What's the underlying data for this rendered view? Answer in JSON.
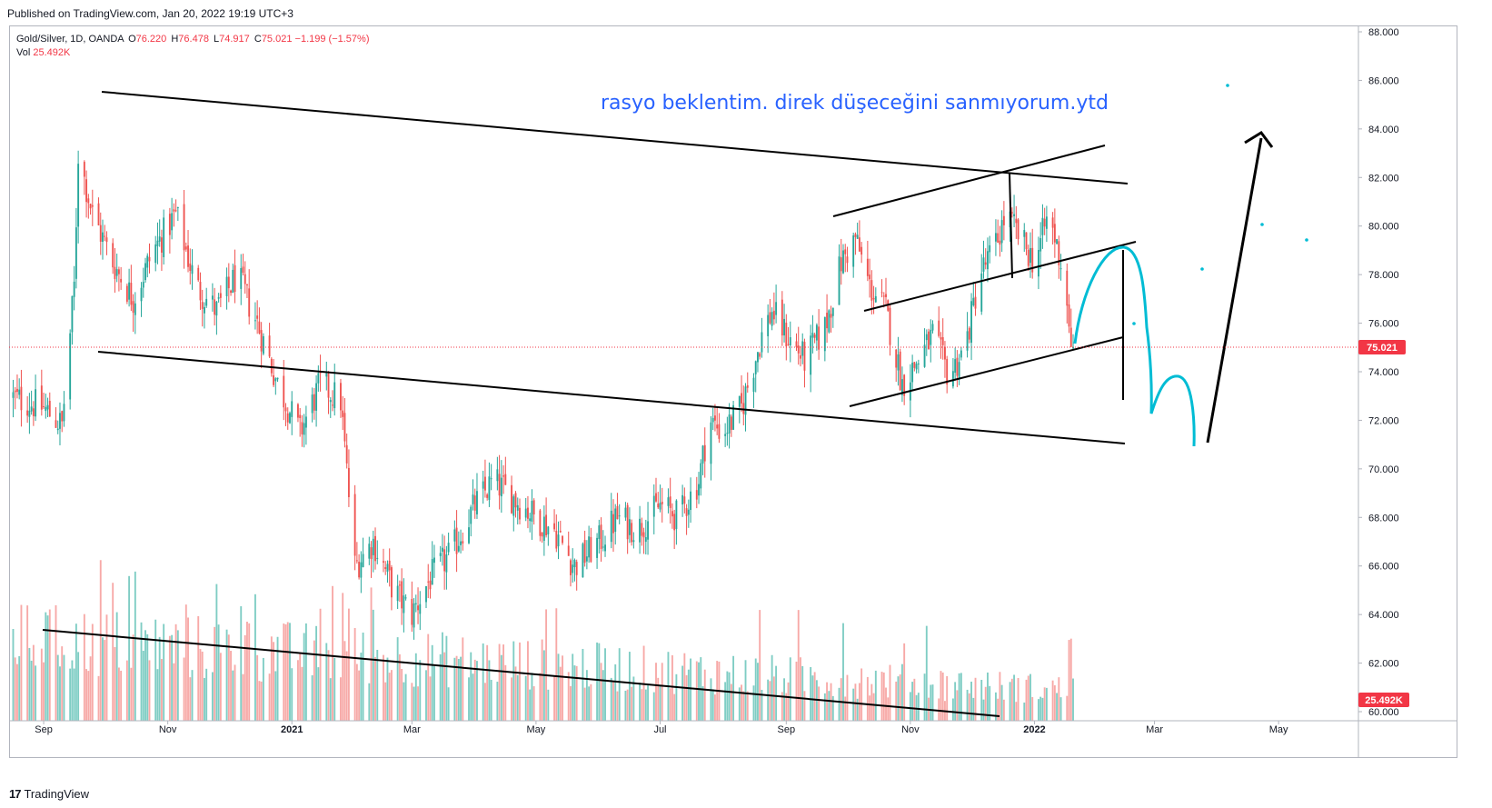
{
  "header": {
    "published": "Published on TradingView.com, Jan 20, 2022 19:19 UTC+3"
  },
  "legend": {
    "symbol": "Gold/Silver, 1D, OANDA",
    "o_label": "O",
    "o": "76.220",
    "h_label": "H",
    "h": "76.478",
    "l_label": "L",
    "l": "74.917",
    "c_label": "C",
    "c": "75.021",
    "change": "−1.199 (−1.57%)",
    "vol_label": "Vol",
    "vol": "25.492K"
  },
  "annotation_text": "rasyo beklentim. direk düşeceğini sanmıyorum.ytd",
  "price_badge": "75.021",
  "volume_badge": "25.492K",
  "footer": {
    "brand": "TradingView"
  },
  "colors": {
    "up": "#26a69a",
    "down": "#ef5350",
    "up_vol": "#7fcdc4",
    "down_vol": "#f7a9a7",
    "annotation": "#2962ff",
    "drawing_cyan": "#00bcd4",
    "badge": "#f23645"
  },
  "chart_data": {
    "type": "candlestick",
    "symbol": "Gold/Silver",
    "interval": "1D",
    "y_axis": {
      "ylim": [
        60,
        88
      ],
      "ticks": [
        "88.000",
        "86.000",
        "84.000",
        "82.000",
        "80.000",
        "78.000",
        "76.000",
        "74.000",
        "72.000",
        "70.000",
        "68.000",
        "66.000",
        "64.000",
        "62.000",
        "60.000"
      ]
    },
    "x_axis": {
      "tick_labels": [
        "Sep",
        "Nov",
        "2021",
        "Mar",
        "May",
        "Jul",
        "Sep",
        "Nov",
        "2022",
        "Mar",
        "May"
      ]
    },
    "last_close": 75.021,
    "approx_close_path": [
      [
        "2020-08-15",
        73.0
      ],
      [
        "2020-09-01",
        72.5
      ],
      [
        "2020-09-10",
        71.8
      ],
      [
        "2020-09-16",
        77.5
      ],
      [
        "2020-09-18",
        83.0
      ],
      [
        "2020-09-25",
        80.5
      ],
      [
        "2020-10-05",
        78.5
      ],
      [
        "2020-10-15",
        77.0
      ],
      [
        "2020-10-25",
        79.0
      ],
      [
        "2020-11-05",
        80.5
      ],
      [
        "2020-11-15",
        77.5
      ],
      [
        "2020-11-25",
        76.5
      ],
      [
        "2020-12-05",
        78.0
      ],
      [
        "2020-12-15",
        76.0
      ],
      [
        "2020-12-25",
        73.5
      ],
      [
        "2021-01-05",
        71.5
      ],
      [
        "2021-01-15",
        73.5
      ],
      [
        "2021-01-25",
        72.8
      ],
      [
        "2021-02-01",
        66.0
      ],
      [
        "2021-02-10",
        67.0
      ],
      [
        "2021-02-20",
        65.0
      ],
      [
        "2021-03-01",
        64.0
      ],
      [
        "2021-03-10",
        65.5
      ],
      [
        "2021-03-20",
        66.5
      ],
      [
        "2021-04-01",
        68.5
      ],
      [
        "2021-04-10",
        69.5
      ],
      [
        "2021-04-20",
        68.8
      ],
      [
        "2021-05-01",
        68.0
      ],
      [
        "2021-05-10",
        67.5
      ],
      [
        "2021-05-20",
        66.0
      ],
      [
        "2021-06-01",
        67.0
      ],
      [
        "2021-06-10",
        68.0
      ],
      [
        "2021-06-20",
        67.5
      ],
      [
        "2021-07-01",
        68.5
      ],
      [
        "2021-07-10",
        68.0
      ],
      [
        "2021-07-20",
        69.5
      ],
      [
        "2021-07-25",
        72.0
      ],
      [
        "2021-08-01",
        71.5
      ],
      [
        "2021-08-10",
        72.5
      ],
      [
        "2021-08-20",
        75.5
      ],
      [
        "2021-08-25",
        76.5
      ],
      [
        "2021-09-01",
        75.5
      ],
      [
        "2021-09-10",
        74.5
      ],
      [
        "2021-09-20",
        75.8
      ],
      [
        "2021-09-28",
        78.5
      ],
      [
        "2021-10-05",
        79.5
      ],
      [
        "2021-10-12",
        77.5
      ],
      [
        "2021-10-20",
        76.5
      ],
      [
        "2021-10-28",
        73.5
      ],
      [
        "2021-11-05",
        74.5
      ],
      [
        "2021-11-12",
        75.5
      ],
      [
        "2021-11-20",
        73.8
      ],
      [
        "2021-11-28",
        75.0
      ],
      [
        "2021-12-05",
        78.0
      ],
      [
        "2021-12-12",
        79.0
      ],
      [
        "2021-12-18",
        80.5
      ],
      [
        "2021-12-25",
        79.5
      ],
      [
        "2022-01-01",
        78.5
      ],
      [
        "2022-01-08",
        80.5
      ],
      [
        "2022-01-14",
        78.5
      ],
      [
        "2022-01-20",
        75.021
      ]
    ]
  }
}
